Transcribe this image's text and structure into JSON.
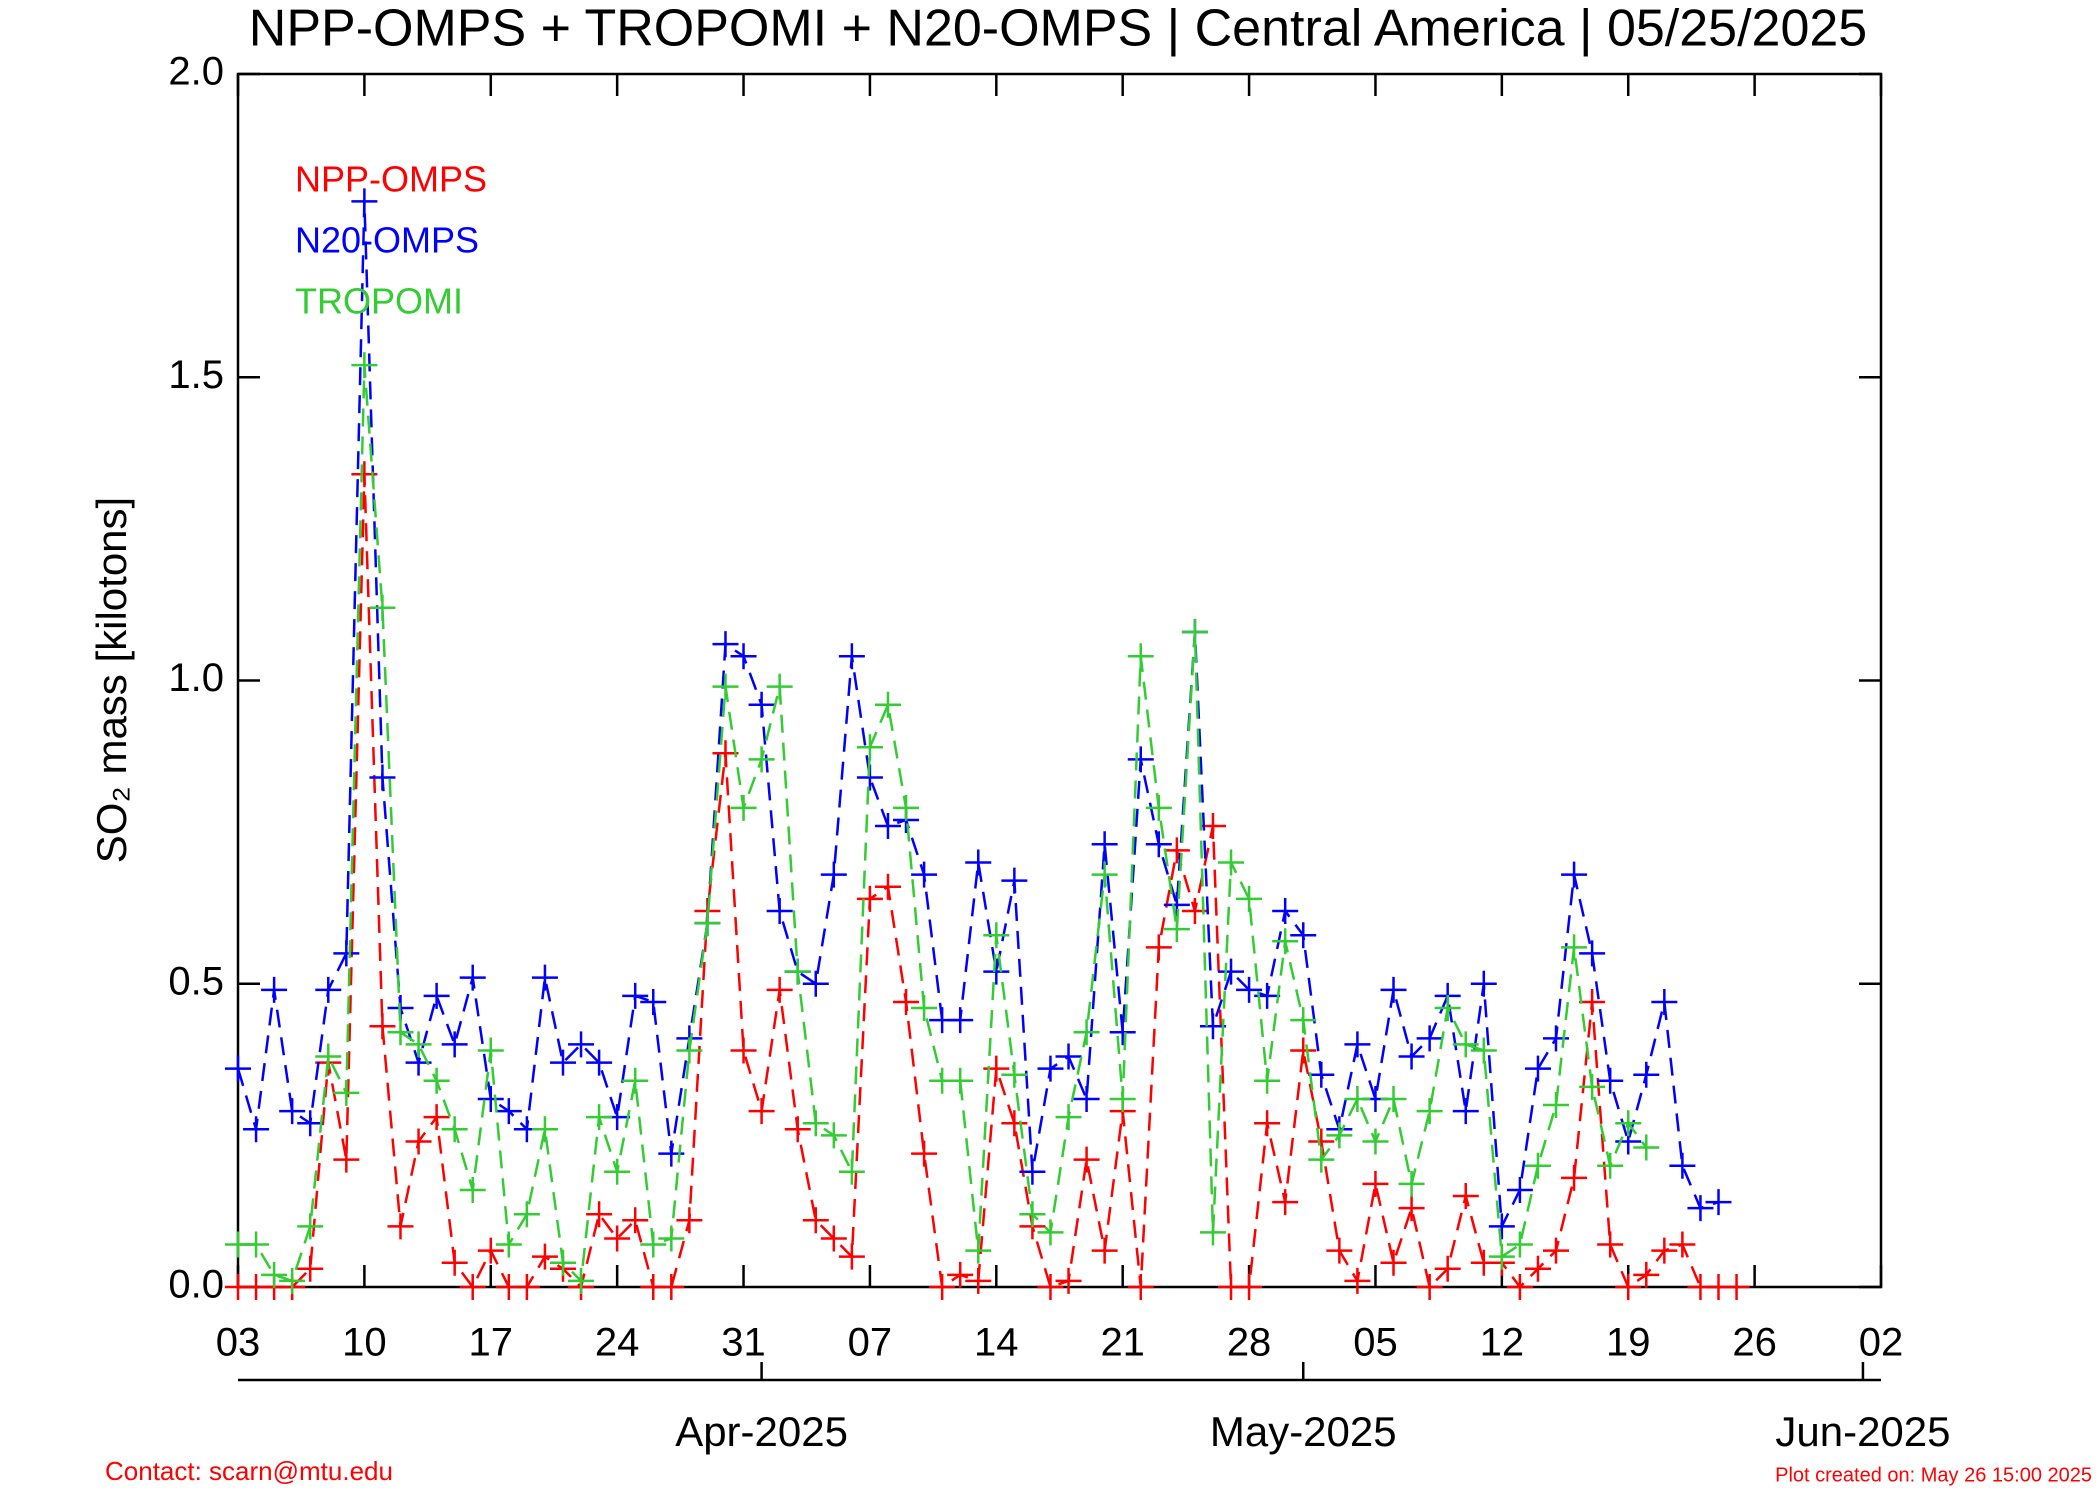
{
  "chart_data": {
    "type": "line",
    "title": "NPP-OMPS + TROPOMI + N20-OMPS | Central America | 05/25/2025",
    "ylabel": "SO₂ mass [kilotons]",
    "contact": "Contact: scarn@mtu.edu",
    "created": "Plot created on: May 26 15:00 2025",
    "x": [
      "2025-03-03",
      "2025-03-04",
      "2025-03-05",
      "2025-03-06",
      "2025-03-07",
      "2025-03-08",
      "2025-03-09",
      "2025-03-10",
      "2025-03-11",
      "2025-03-12",
      "2025-03-13",
      "2025-03-14",
      "2025-03-15",
      "2025-03-16",
      "2025-03-17",
      "2025-03-18",
      "2025-03-19",
      "2025-03-20",
      "2025-03-21",
      "2025-03-22",
      "2025-03-23",
      "2025-03-24",
      "2025-03-25",
      "2025-03-26",
      "2025-03-27",
      "2025-03-28",
      "2025-03-29",
      "2025-03-30",
      "2025-03-31",
      "2025-04-01",
      "2025-04-02",
      "2025-04-03",
      "2025-04-04",
      "2025-04-05",
      "2025-04-06",
      "2025-04-07",
      "2025-04-08",
      "2025-04-09",
      "2025-04-10",
      "2025-04-11",
      "2025-04-12",
      "2025-04-13",
      "2025-04-14",
      "2025-04-15",
      "2025-04-16",
      "2025-04-17",
      "2025-04-18",
      "2025-04-19",
      "2025-04-20",
      "2025-04-21",
      "2025-04-22",
      "2025-04-23",
      "2025-04-24",
      "2025-04-25",
      "2025-04-26",
      "2025-04-27",
      "2025-04-28",
      "2025-04-29",
      "2025-04-30",
      "2025-05-01",
      "2025-05-02",
      "2025-05-03",
      "2025-05-04",
      "2025-05-05",
      "2025-05-06",
      "2025-05-07",
      "2025-05-08",
      "2025-05-09",
      "2025-05-10",
      "2025-05-11",
      "2025-05-12",
      "2025-05-13",
      "2025-05-14",
      "2025-05-15",
      "2025-05-16",
      "2025-05-17",
      "2025-05-18",
      "2025-05-19",
      "2025-05-20",
      "2025-05-21",
      "2025-05-22",
      "2025-05-23",
      "2025-05-24",
      "2025-05-25"
    ],
    "series": [
      {
        "name": "NPP-OMPS",
        "color": "#ff0000",
        "values": [
          0,
          0,
          0,
          0,
          0.03,
          0.37,
          0.21,
          1.34,
          0.43,
          0.1,
          0.24,
          0.28,
          0.04,
          0,
          0.06,
          0,
          0,
          0.05,
          0.03,
          0,
          0.12,
          0.08,
          0.11,
          0,
          0,
          0.11,
          0.62,
          0.88,
          0.39,
          0.29,
          0.49,
          0.26,
          0.11,
          0.08,
          0.05,
          0.64,
          0.66,
          0.47,
          0.22,
          0,
          0.02,
          0.01,
          0.36,
          0.27,
          0.1,
          0,
          0.01,
          0.21,
          0.06,
          0.29,
          0,
          0.56,
          0.72,
          0.62,
          0.76,
          0,
          0,
          0.27,
          0.14,
          0.39,
          0.24,
          0.06,
          0.01,
          0.17,
          0.04,
          0.13,
          0,
          0.03,
          0.15,
          0.04,
          0.04,
          0,
          0.03,
          0.06,
          0.18,
          0.47,
          0.07,
          0,
          0.02,
          0.06,
          0.07,
          0,
          0,
          0
        ]
      },
      {
        "name": "N20-OMPS",
        "color": "#0000ff",
        "values": [
          0.36,
          0.26,
          0.49,
          0.29,
          0.27,
          0.49,
          0.55,
          1.79,
          0.84,
          0.46,
          0.37,
          0.48,
          0.4,
          0.51,
          0.31,
          0.29,
          0.26,
          0.51,
          0.37,
          0.4,
          0.37,
          0.28,
          0.48,
          0.47,
          0.22,
          0.41,
          0.6,
          1.06,
          1.04,
          0.96,
          0.62,
          0.52,
          0.5,
          0.68,
          1.04,
          0.84,
          0.76,
          0.77,
          0.68,
          0.44,
          0.44,
          0.7,
          0.52,
          0.67,
          0.19,
          0.36,
          0.38,
          0.31,
          0.73,
          0.42,
          0.87,
          0.73,
          0.63,
          1.08,
          0.43,
          0.52,
          0.49,
          0.48,
          0.62,
          0.58,
          0.35,
          0.26,
          0.4,
          0.31,
          0.49,
          0.38,
          0.41,
          0.48,
          0.29,
          0.5,
          0.1,
          0.16,
          0.36,
          0.41,
          0.68,
          0.55,
          0.34,
          0.24,
          0.35,
          0.47,
          0.2,
          0.13,
          0.14,
          null
        ]
      },
      {
        "name": "TROPOMI",
        "color": "#33cc33",
        "values": [
          0.07,
          0.07,
          0.02,
          0.01,
          0.1,
          0.38,
          0.32,
          1.52,
          1.12,
          0.42,
          0.4,
          0.34,
          0.26,
          0.16,
          0.39,
          0.07,
          0.12,
          0.26,
          0.04,
          0.01,
          0.28,
          0.19,
          0.34,
          0.07,
          0.08,
          0.39,
          0.6,
          0.99,
          0.79,
          0.87,
          0.99,
          0.52,
          0.27,
          0.25,
          0.19,
          0.89,
          0.96,
          0.79,
          0.46,
          0.34,
          0.34,
          0.06,
          0.58,
          0.35,
          0.12,
          0.09,
          0.28,
          0.42,
          0.68,
          0.31,
          1.04,
          0.79,
          0.59,
          1.08,
          0.09,
          0.7,
          0.64,
          0.34,
          0.57,
          0.44,
          0.21,
          0.25,
          0.31,
          0.24,
          0.31,
          0.17,
          0.29,
          0.46,
          0.4,
          0.39,
          0.05,
          0.07,
          0.2,
          0.3,
          0.56,
          0.33,
          0.2,
          0.27,
          0.23,
          null,
          null,
          null,
          null,
          null
        ]
      }
    ],
    "xlim": [
      "2025-03-03",
      "2025-06-02"
    ],
    "xticks": [
      {
        "value": "2025-03-03",
        "label": "03"
      },
      {
        "value": "2025-03-10",
        "label": "10"
      },
      {
        "value": "2025-03-17",
        "label": "17"
      },
      {
        "value": "2025-03-24",
        "label": "24"
      },
      {
        "value": "2025-03-31",
        "label": "31"
      },
      {
        "value": "2025-04-07",
        "label": "07"
      },
      {
        "value": "2025-04-14",
        "label": "14"
      },
      {
        "value": "2025-04-21",
        "label": "21"
      },
      {
        "value": "2025-04-28",
        "label": "28"
      },
      {
        "value": "2025-05-05",
        "label": "05"
      },
      {
        "value": "2025-05-12",
        "label": "12"
      },
      {
        "value": "2025-05-19",
        "label": "19"
      },
      {
        "value": "2025-05-26",
        "label": "26"
      },
      {
        "value": "2025-06-02",
        "label": "02"
      }
    ],
    "month_ticks": [
      {
        "value": "2025-04-01",
        "label": "Apr-2025"
      },
      {
        "value": "2025-05-01",
        "label": "May-2025"
      },
      {
        "value": "2025-06-01",
        "label": "Jun-2025"
      }
    ],
    "ylim": [
      0,
      2
    ],
    "yticks": [
      {
        "value": 0,
        "label": "0.0"
      },
      {
        "value": 0.5,
        "label": "0.5"
      },
      {
        "value": 1,
        "label": "1.0"
      },
      {
        "value": 1.5,
        "label": "1.5"
      },
      {
        "value": 2,
        "label": "2.0"
      }
    ]
  }
}
